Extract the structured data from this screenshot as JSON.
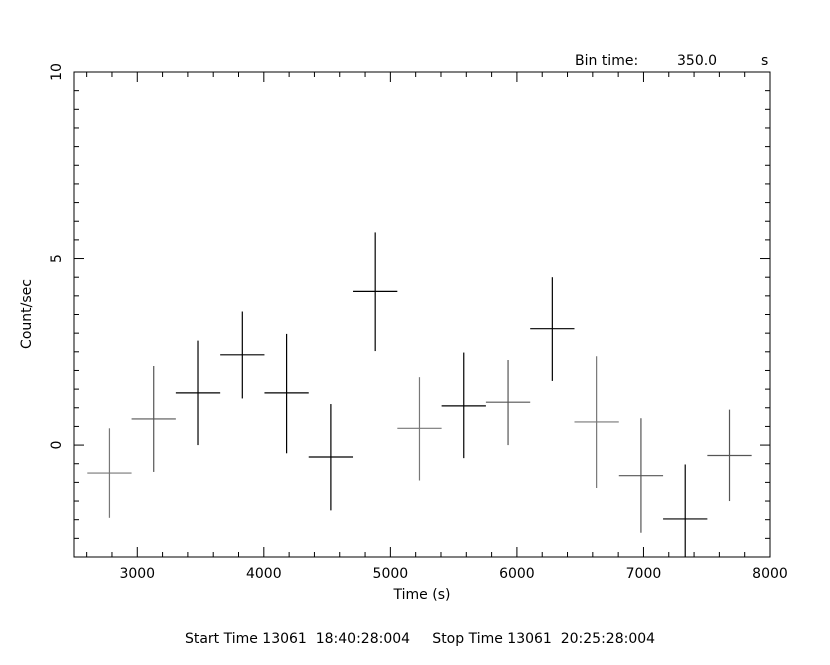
{
  "chart_data": {
    "type": "scatter",
    "xlabel": "Time (s)",
    "ylabel": "Count/sec",
    "xlim": [
      2500,
      8000
    ],
    "ylim": [
      -3,
      10
    ],
    "x_ticks": [
      3000,
      4000,
      5000,
      6000,
      7000,
      8000
    ],
    "y_ticks": [
      0,
      5,
      10
    ],
    "bin_time_label": "Bin time:",
    "bin_time_value": "350.0",
    "bin_time_unit": "s",
    "footer": "Start Time 13061  18:40:28:004     Stop Time 13061  20:25:28:004",
    "points": [
      {
        "x": 2780,
        "y": -0.75,
        "xerr": 175,
        "ylow": -1.95,
        "yhigh": 0.45,
        "color": "#777777"
      },
      {
        "x": 3130,
        "y": 0.7,
        "xerr": 175,
        "ylow": -0.72,
        "yhigh": 2.12,
        "color": "#555555"
      },
      {
        "x": 3480,
        "y": 1.4,
        "xerr": 175,
        "ylow": 0.0,
        "yhigh": 2.8,
        "color": "#000000"
      },
      {
        "x": 3830,
        "y": 2.42,
        "xerr": 175,
        "ylow": 1.25,
        "yhigh": 3.58,
        "color": "#000000"
      },
      {
        "x": 4180,
        "y": 1.4,
        "xerr": 175,
        "ylow": -0.22,
        "yhigh": 2.98,
        "color": "#000000"
      },
      {
        "x": 4530,
        "y": -0.32,
        "xerr": 175,
        "ylow": -1.75,
        "yhigh": 1.1,
        "color": "#000000"
      },
      {
        "x": 4880,
        "y": 4.12,
        "xerr": 175,
        "ylow": 2.52,
        "yhigh": 5.7,
        "color": "#000000"
      },
      {
        "x": 5230,
        "y": 0.45,
        "xerr": 175,
        "ylow": -0.95,
        "yhigh": 1.82,
        "color": "#777777"
      },
      {
        "x": 5580,
        "y": 1.05,
        "xerr": 175,
        "ylow": -0.35,
        "yhigh": 2.48,
        "color": "#000000"
      },
      {
        "x": 5930,
        "y": 1.15,
        "xerr": 175,
        "ylow": 0.0,
        "yhigh": 2.28,
        "color": "#555555"
      },
      {
        "x": 6280,
        "y": 3.12,
        "xerr": 175,
        "ylow": 1.72,
        "yhigh": 4.5,
        "color": "#000000"
      },
      {
        "x": 6630,
        "y": 0.62,
        "xerr": 175,
        "ylow": -1.15,
        "yhigh": 2.38,
        "color": "#777777"
      },
      {
        "x": 6980,
        "y": -0.82,
        "xerr": 175,
        "ylow": -2.35,
        "yhigh": 0.72,
        "color": "#555555"
      },
      {
        "x": 7330,
        "y": -1.98,
        "xerr": 175,
        "ylow": -3.0,
        "yhigh": -0.52,
        "color": "#000000"
      },
      {
        "x": 7680,
        "y": -0.28,
        "xerr": 175,
        "ylow": -1.5,
        "yhigh": 0.95,
        "color": "#555555"
      }
    ]
  }
}
